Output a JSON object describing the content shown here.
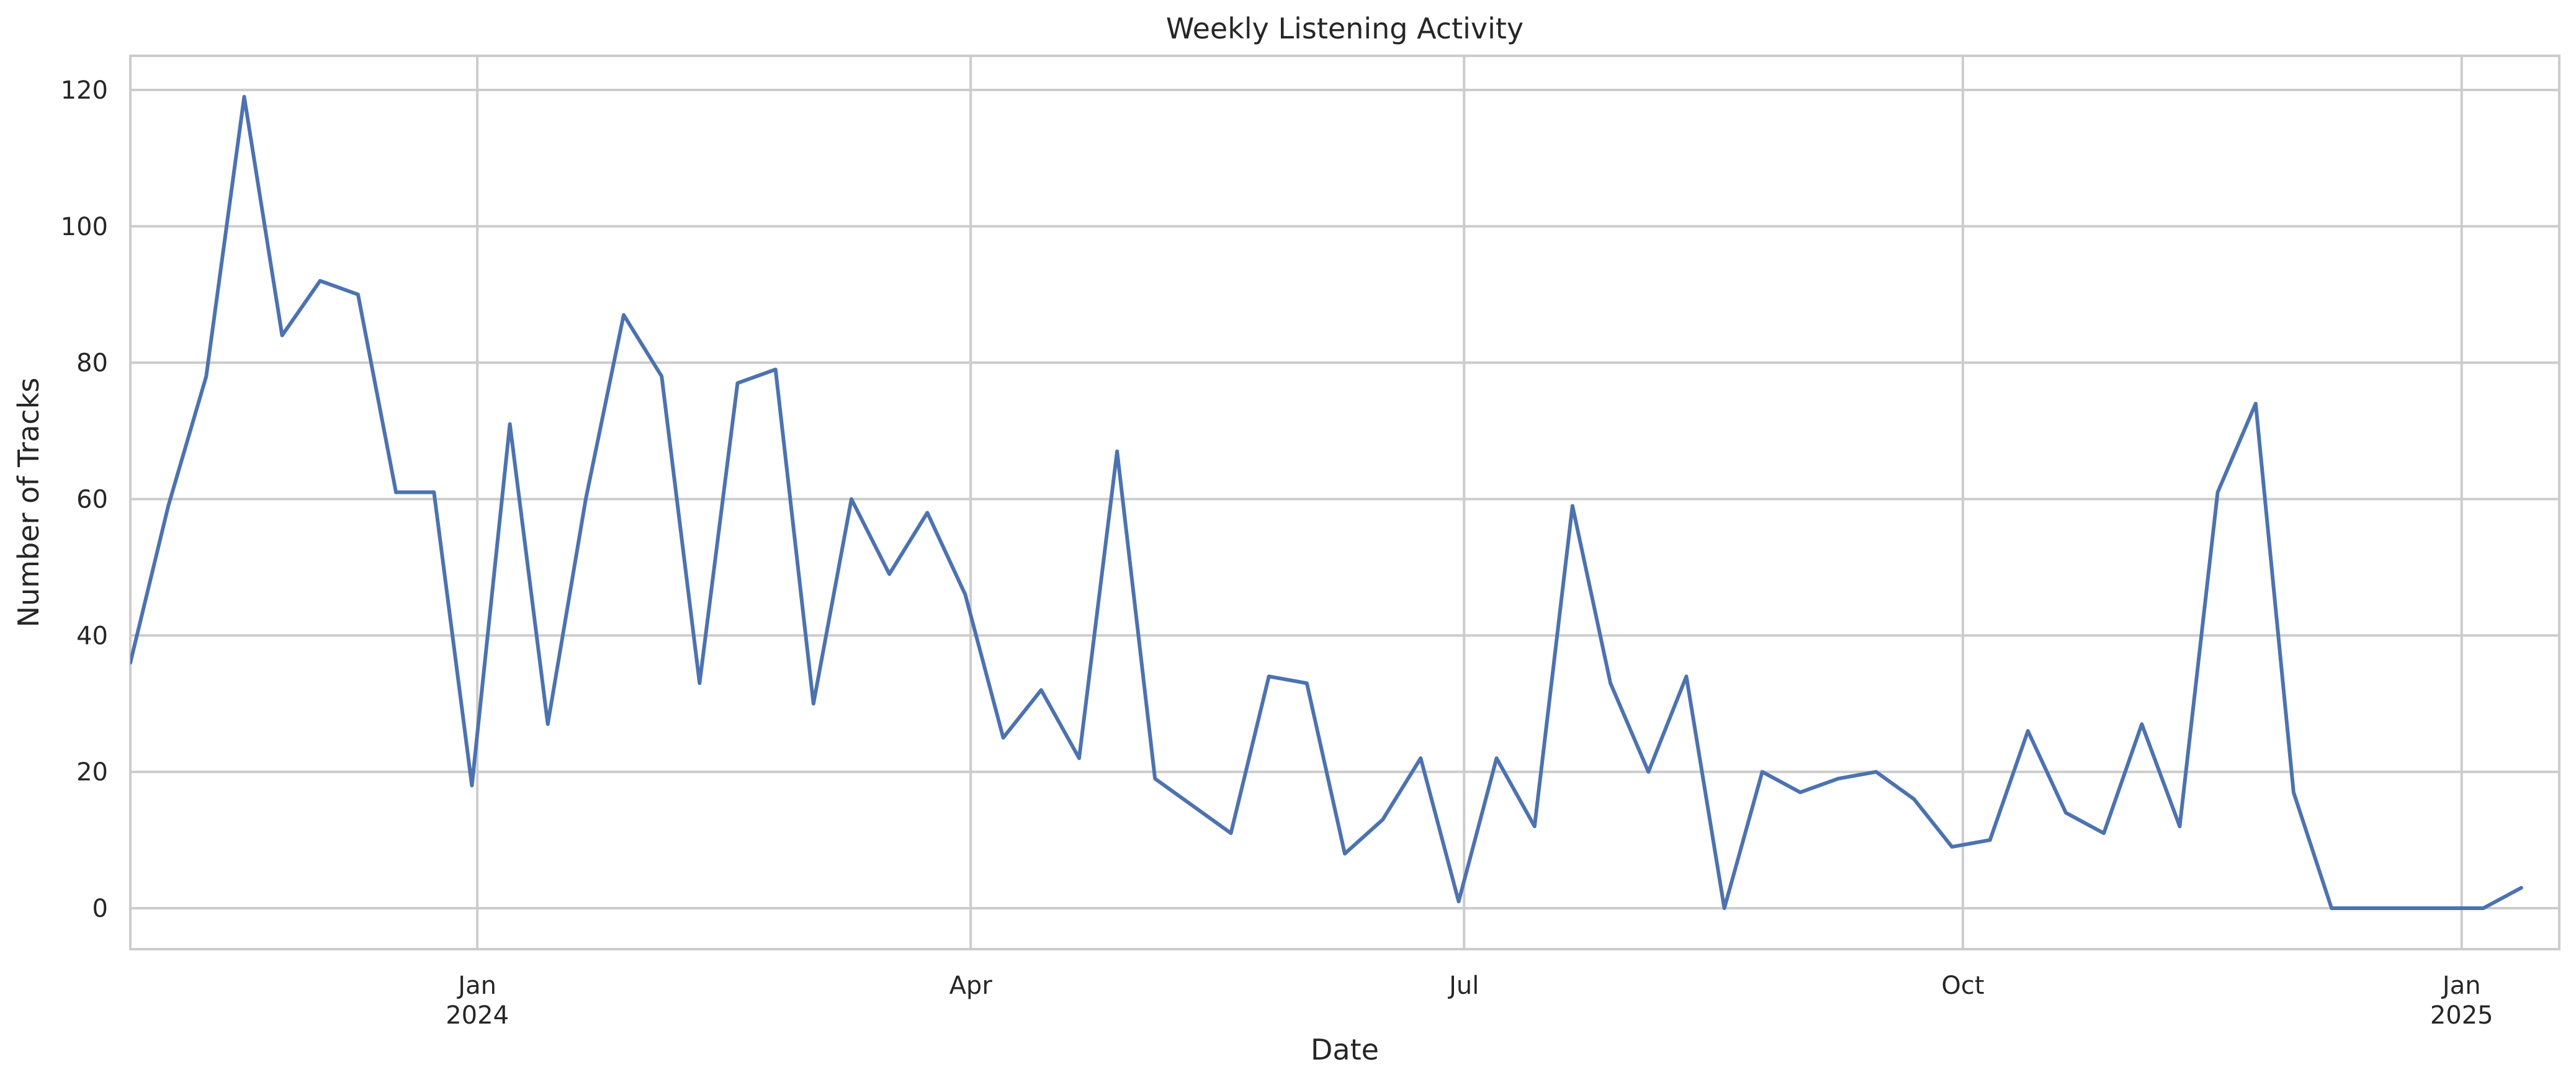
{
  "chart_data": {
    "type": "line",
    "title": "Weekly Listening Activity",
    "xlabel": "Date",
    "ylabel": "Number of Tracks",
    "x_start": "2023-10-29",
    "x_step_days": 7,
    "xlim": [
      "2023-10-29",
      "2025-01-19"
    ],
    "ylim": [
      -6,
      125
    ],
    "grid": true,
    "legend": false,
    "color": "#4c72b0",
    "yticks": [
      0,
      20,
      40,
      60,
      80,
      100,
      120
    ],
    "xticks": [
      {
        "date": "2024-01-01",
        "label": "Jan",
        "sublabel": "2024"
      },
      {
        "date": "2024-04-01",
        "label": "Apr",
        "sublabel": ""
      },
      {
        "date": "2024-07-01",
        "label": "Jul",
        "sublabel": ""
      },
      {
        "date": "2024-10-01",
        "label": "Oct",
        "sublabel": ""
      },
      {
        "date": "2025-01-01",
        "label": "Jan",
        "sublabel": "2025"
      }
    ],
    "values": [
      36,
      59,
      78,
      119,
      84,
      92,
      90,
      61,
      61,
      18,
      71,
      27,
      60,
      87,
      78,
      33,
      77,
      79,
      30,
      60,
      49,
      58,
      46,
      25,
      32,
      22,
      67,
      19,
      15,
      11,
      34,
      33,
      8,
      13,
      22,
      1,
      22,
      12,
      59,
      33,
      20,
      34,
      0,
      20,
      17,
      19,
      20,
      16,
      9,
      10,
      26,
      14,
      11,
      27,
      12,
      61,
      74,
      17,
      0,
      0,
      0,
      0,
      0,
      3
    ]
  }
}
